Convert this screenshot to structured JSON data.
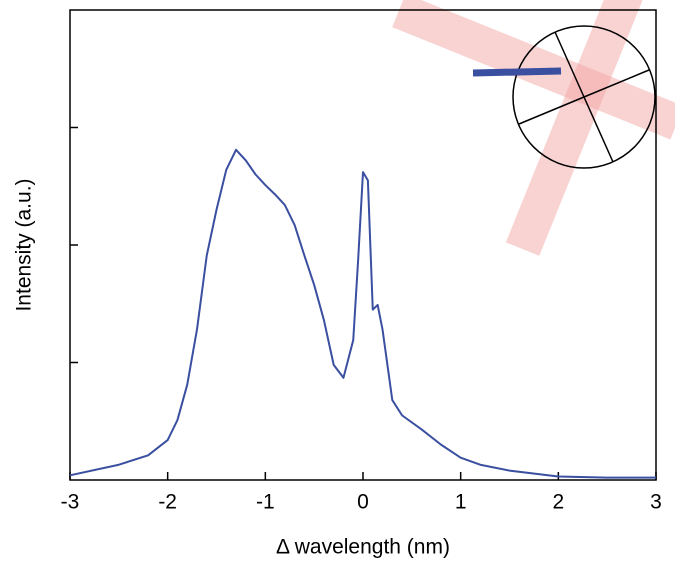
{
  "chart_data": {
    "type": "line",
    "x_label": "Δ wavelength (nm)",
    "y_label": "Intensity (a.u.)",
    "xlim": [
      -3,
      3
    ],
    "xticks": [
      -3,
      -2,
      -1,
      0,
      1,
      2,
      3
    ],
    "ylim": [
      0,
      4
    ],
    "yticks": [
      1,
      2,
      3
    ],
    "series": [
      {
        "color": "#3a4fa0",
        "x": [
          -3,
          -2.5,
          -2.2,
          -2,
          -1.9,
          -1.8,
          -1.7,
          -1.6,
          -1.5,
          -1.4,
          -1.3,
          -1.2,
          -1.1,
          -1.0,
          -0.9,
          -0.8,
          -0.7,
          -0.6,
          -0.5,
          -0.4,
          -0.3,
          -0.2,
          -0.1,
          -0.05,
          0,
          0.05,
          0.1,
          0.15,
          0.2,
          0.3,
          0.4,
          0.6,
          0.8,
          1.0,
          1.2,
          1.5,
          2,
          2.5,
          3
        ],
        "values": [
          0.04,
          0.13,
          0.21,
          0.34,
          0.51,
          0.81,
          1.28,
          1.91,
          2.3,
          2.64,
          2.81,
          2.72,
          2.6,
          2.51,
          2.43,
          2.34,
          2.17,
          1.91,
          1.66,
          1.36,
          0.98,
          0.87,
          1.19,
          1.87,
          2.62,
          2.55,
          1.45,
          1.49,
          1.28,
          0.68,
          0.55,
          0.43,
          0.3,
          0.19,
          0.13,
          0.08,
          0.03,
          0.02,
          0.02
        ]
      }
    ]
  }
}
